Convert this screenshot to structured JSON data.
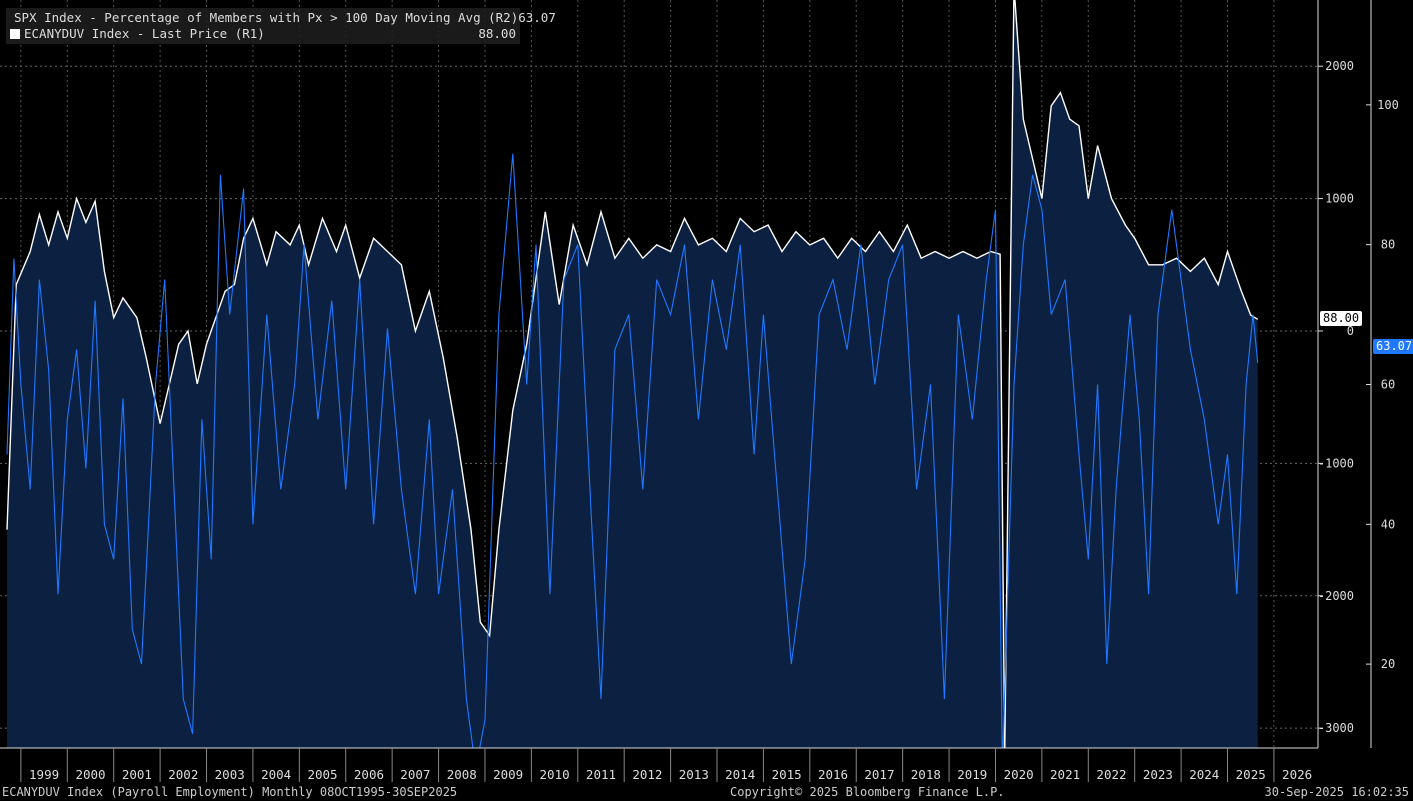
{
  "legend": [
    {
      "label": "SPX Index - Percentage of Members with Px > 100 Day Moving Avg (R2)",
      "value": "63.07",
      "color": "#1f78ff"
    },
    {
      "label": "ECANYDUV Index - Last Price (R1)",
      "value": "88.00",
      "color": "#ffffff"
    }
  ],
  "footer": {
    "left": "ECANYDUV Index (Payroll Employment) Monthly 08OCT1995-30SEP2025",
    "center": "Copyright© 2025 Bloomberg Finance L.P.",
    "right": "30-Sep-2025 16:02:35"
  },
  "tags": {
    "r1_last": "88.00",
    "r2_last": "63.07"
  },
  "chart_data": {
    "type": "line",
    "x_labels": [
      "1999",
      "2000",
      "2001",
      "2002",
      "2003",
      "2004",
      "2005",
      "2006",
      "2007",
      "2008",
      "2009",
      "2010",
      "2011",
      "2012",
      "2013",
      "2014",
      "2015",
      "2016",
      "2017",
      "2018",
      "2019",
      "2020",
      "2021",
      "2022",
      "2023",
      "2024",
      "2025",
      "2026"
    ],
    "axes": {
      "R1": {
        "ticks": [
          -3000,
          -2000,
          -1000,
          0,
          1000,
          2000
        ],
        "ylim": [
          -3150,
          2500
        ]
      },
      "R2": {
        "ticks": [
          20,
          40,
          60,
          80,
          100
        ],
        "ylim": [
          8,
          115
        ]
      }
    },
    "series": [
      {
        "name": "ECANYDUV Index - Last Price (R1)",
        "axis": "R1",
        "color": "#ffffff",
        "fill": true,
        "points": [
          [
            1998.7,
            -1500
          ],
          [
            1998.9,
            350
          ],
          [
            1999.2,
            600
          ],
          [
            1999.4,
            880
          ],
          [
            1999.6,
            650
          ],
          [
            1999.8,
            900
          ],
          [
            2000.0,
            700
          ],
          [
            2000.2,
            1000
          ],
          [
            2000.4,
            820
          ],
          [
            2000.6,
            980
          ],
          [
            2000.8,
            450
          ],
          [
            2001.0,
            100
          ],
          [
            2001.2,
            250
          ],
          [
            2001.5,
            100
          ],
          [
            2001.7,
            -200
          ],
          [
            2002.0,
            -700
          ],
          [
            2002.2,
            -400
          ],
          [
            2002.4,
            -100
          ],
          [
            2002.6,
            0
          ],
          [
            2002.8,
            -400
          ],
          [
            2003.0,
            -100
          ],
          [
            2003.2,
            100
          ],
          [
            2003.4,
            300
          ],
          [
            2003.6,
            350
          ],
          [
            2003.8,
            700
          ],
          [
            2004.0,
            850
          ],
          [
            2004.3,
            500
          ],
          [
            2004.5,
            750
          ],
          [
            2004.8,
            650
          ],
          [
            2005.0,
            800
          ],
          [
            2005.2,
            500
          ],
          [
            2005.5,
            850
          ],
          [
            2005.8,
            600
          ],
          [
            2006.0,
            800
          ],
          [
            2006.3,
            400
          ],
          [
            2006.6,
            700
          ],
          [
            2006.9,
            600
          ],
          [
            2007.2,
            500
          ],
          [
            2007.5,
            0
          ],
          [
            2007.8,
            300
          ],
          [
            2008.1,
            -200
          ],
          [
            2008.4,
            -800
          ],
          [
            2008.7,
            -1500
          ],
          [
            2008.9,
            -2200
          ],
          [
            2009.1,
            -2300
          ],
          [
            2009.3,
            -1500
          ],
          [
            2009.6,
            -600
          ],
          [
            2009.9,
            -100
          ],
          [
            2010.1,
            400
          ],
          [
            2010.3,
            900
          ],
          [
            2010.6,
            200
          ],
          [
            2010.9,
            800
          ],
          [
            2011.2,
            500
          ],
          [
            2011.5,
            900
          ],
          [
            2011.8,
            550
          ],
          [
            2012.1,
            700
          ],
          [
            2012.4,
            550
          ],
          [
            2012.7,
            650
          ],
          [
            2013.0,
            600
          ],
          [
            2013.3,
            850
          ],
          [
            2013.6,
            650
          ],
          [
            2013.9,
            700
          ],
          [
            2014.2,
            600
          ],
          [
            2014.5,
            850
          ],
          [
            2014.8,
            750
          ],
          [
            2015.1,
            800
          ],
          [
            2015.4,
            600
          ],
          [
            2015.7,
            750
          ],
          [
            2016.0,
            650
          ],
          [
            2016.3,
            700
          ],
          [
            2016.6,
            550
          ],
          [
            2016.9,
            700
          ],
          [
            2017.2,
            600
          ],
          [
            2017.5,
            750
          ],
          [
            2017.8,
            600
          ],
          [
            2018.1,
            800
          ],
          [
            2018.4,
            550
          ],
          [
            2018.7,
            600
          ],
          [
            2019.0,
            550
          ],
          [
            2019.3,
            600
          ],
          [
            2019.6,
            550
          ],
          [
            2019.9,
            600
          ],
          [
            2020.1,
            580
          ],
          [
            2020.2,
            -3200
          ],
          [
            2020.4,
            2600
          ],
          [
            2020.6,
            1600
          ],
          [
            2020.8,
            1300
          ],
          [
            2021.0,
            1000
          ],
          [
            2021.2,
            1700
          ],
          [
            2021.4,
            1800
          ],
          [
            2021.6,
            1600
          ],
          [
            2021.8,
            1550
          ],
          [
            2022.0,
            1000
          ],
          [
            2022.2,
            1400
          ],
          [
            2022.5,
            1000
          ],
          [
            2022.8,
            800
          ],
          [
            2023.0,
            700
          ],
          [
            2023.3,
            500
          ],
          [
            2023.6,
            500
          ],
          [
            2023.9,
            550
          ],
          [
            2024.2,
            450
          ],
          [
            2024.5,
            550
          ],
          [
            2024.8,
            350
          ],
          [
            2025.0,
            600
          ],
          [
            2025.3,
            300
          ],
          [
            2025.5,
            120
          ],
          [
            2025.65,
            88
          ]
        ]
      },
      {
        "name": "SPX Index - Percentage of Members with Px > 100 Day Moving Avg (R2)",
        "axis": "R2",
        "color": "#1f78ff",
        "fill": false,
        "points": [
          [
            1998.7,
            50
          ],
          [
            1998.85,
            78
          ],
          [
            1999.0,
            60
          ],
          [
            1999.2,
            45
          ],
          [
            1999.4,
            75
          ],
          [
            1999.6,
            62
          ],
          [
            1999.8,
            30
          ],
          [
            2000.0,
            55
          ],
          [
            2000.2,
            65
          ],
          [
            2000.4,
            48
          ],
          [
            2000.6,
            72
          ],
          [
            2000.8,
            40
          ],
          [
            2001.0,
            35
          ],
          [
            2001.2,
            58
          ],
          [
            2001.4,
            25
          ],
          [
            2001.6,
            20
          ],
          [
            2001.9,
            60
          ],
          [
            2002.1,
            75
          ],
          [
            2002.3,
            45
          ],
          [
            2002.5,
            15
          ],
          [
            2002.7,
            10
          ],
          [
            2002.9,
            55
          ],
          [
            2003.1,
            35
          ],
          [
            2003.3,
            90
          ],
          [
            2003.5,
            70
          ],
          [
            2003.8,
            88
          ],
          [
            2004.0,
            40
          ],
          [
            2004.3,
            70
          ],
          [
            2004.6,
            45
          ],
          [
            2004.9,
            60
          ],
          [
            2005.1,
            80
          ],
          [
            2005.4,
            55
          ],
          [
            2005.7,
            72
          ],
          [
            2006.0,
            45
          ],
          [
            2006.3,
            75
          ],
          [
            2006.6,
            40
          ],
          [
            2006.9,
            68
          ],
          [
            2007.2,
            45
          ],
          [
            2007.5,
            30
          ],
          [
            2007.8,
            55
          ],
          [
            2008.0,
            30
          ],
          [
            2008.3,
            45
          ],
          [
            2008.6,
            15
          ],
          [
            2008.8,
            5
          ],
          [
            2009.0,
            12
          ],
          [
            2009.3,
            70
          ],
          [
            2009.6,
            93
          ],
          [
            2009.9,
            60
          ],
          [
            2010.1,
            80
          ],
          [
            2010.4,
            30
          ],
          [
            2010.7,
            75
          ],
          [
            2011.0,
            80
          ],
          [
            2011.3,
            40
          ],
          [
            2011.5,
            15
          ],
          [
            2011.8,
            65
          ],
          [
            2012.1,
            70
          ],
          [
            2012.4,
            45
          ],
          [
            2012.7,
            75
          ],
          [
            2013.0,
            70
          ],
          [
            2013.3,
            80
          ],
          [
            2013.6,
            55
          ],
          [
            2013.9,
            75
          ],
          [
            2014.2,
            65
          ],
          [
            2014.5,
            80
          ],
          [
            2014.8,
            50
          ],
          [
            2015.0,
            70
          ],
          [
            2015.3,
            45
          ],
          [
            2015.6,
            20
          ],
          [
            2015.9,
            35
          ],
          [
            2016.2,
            70
          ],
          [
            2016.5,
            75
          ],
          [
            2016.8,
            65
          ],
          [
            2017.1,
            80
          ],
          [
            2017.4,
            60
          ],
          [
            2017.7,
            75
          ],
          [
            2018.0,
            80
          ],
          [
            2018.3,
            45
          ],
          [
            2018.6,
            60
          ],
          [
            2018.9,
            15
          ],
          [
            2019.2,
            70
          ],
          [
            2019.5,
            55
          ],
          [
            2019.8,
            75
          ],
          [
            2020.0,
            85
          ],
          [
            2020.15,
            5
          ],
          [
            2020.4,
            60
          ],
          [
            2020.6,
            80
          ],
          [
            2020.8,
            90
          ],
          [
            2021.0,
            85
          ],
          [
            2021.2,
            70
          ],
          [
            2021.5,
            75
          ],
          [
            2021.8,
            50
          ],
          [
            2022.0,
            35
          ],
          [
            2022.2,
            60
          ],
          [
            2022.4,
            20
          ],
          [
            2022.6,
            45
          ],
          [
            2022.9,
            70
          ],
          [
            2023.1,
            55
          ],
          [
            2023.3,
            30
          ],
          [
            2023.5,
            70
          ],
          [
            2023.8,
            85
          ],
          [
            2024.0,
            75
          ],
          [
            2024.2,
            65
          ],
          [
            2024.5,
            55
          ],
          [
            2024.8,
            40
          ],
          [
            2025.0,
            50
          ],
          [
            2025.2,
            30
          ],
          [
            2025.4,
            60
          ],
          [
            2025.55,
            70
          ],
          [
            2025.65,
            63.07
          ]
        ]
      }
    ]
  }
}
